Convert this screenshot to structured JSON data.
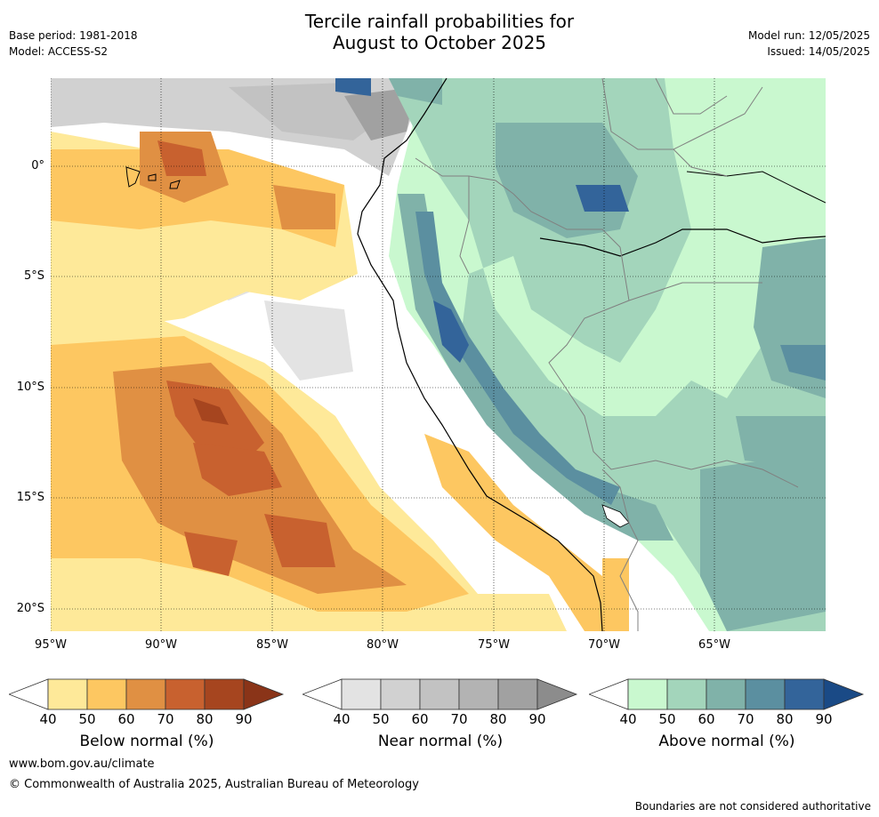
{
  "title_line1": "Tercile rainfall probabilities for",
  "title_line2": "August to October 2025",
  "base_period": "Base period: 1981-2018",
  "model": "Model: ACCESS-S2",
  "model_run": "Model run: 12/05/2025",
  "issued": "Issued: 14/05/2025",
  "lat_labels": [
    "0°",
    "5°S",
    "10°S",
    "15°S",
    "20°S"
  ],
  "lon_labels": [
    "95°W",
    "90°W",
    "85°W",
    "80°W",
    "75°W",
    "70°W",
    "65°W"
  ],
  "colorbars": [
    {
      "title": "Below normal (%)",
      "ticks": [
        "40",
        "50",
        "60",
        "70",
        "80",
        "90"
      ],
      "colors": [
        "#ffffff",
        "#fee999",
        "#fdc761",
        "#e09043",
        "#c8612f",
        "#a6451f",
        "#8a3418"
      ]
    },
    {
      "title": "Near normal (%)",
      "ticks": [
        "40",
        "50",
        "60",
        "70",
        "80",
        "90"
      ],
      "colors": [
        "#ffffff",
        "#e3e3e3",
        "#d1d1d1",
        "#c2c2c2",
        "#b3b3b3",
        "#a1a1a1",
        "#8c8c8c"
      ]
    },
    {
      "title": "Above normal (%)",
      "ticks": [
        "40",
        "50",
        "60",
        "70",
        "80",
        "90"
      ],
      "colors": [
        "#ffffff",
        "#c9f8cf",
        "#a3d5bb",
        "#80b2a9",
        "#5b8fa0",
        "#33649a",
        "#1a4a86"
      ]
    }
  ],
  "website": "www.bom.gov.au/climate",
  "copyright": "© Commonwealth of Australia 2025, Australian Bureau of Meteorology",
  "disclaimer": "Boundaries are not considered authoritative"
}
